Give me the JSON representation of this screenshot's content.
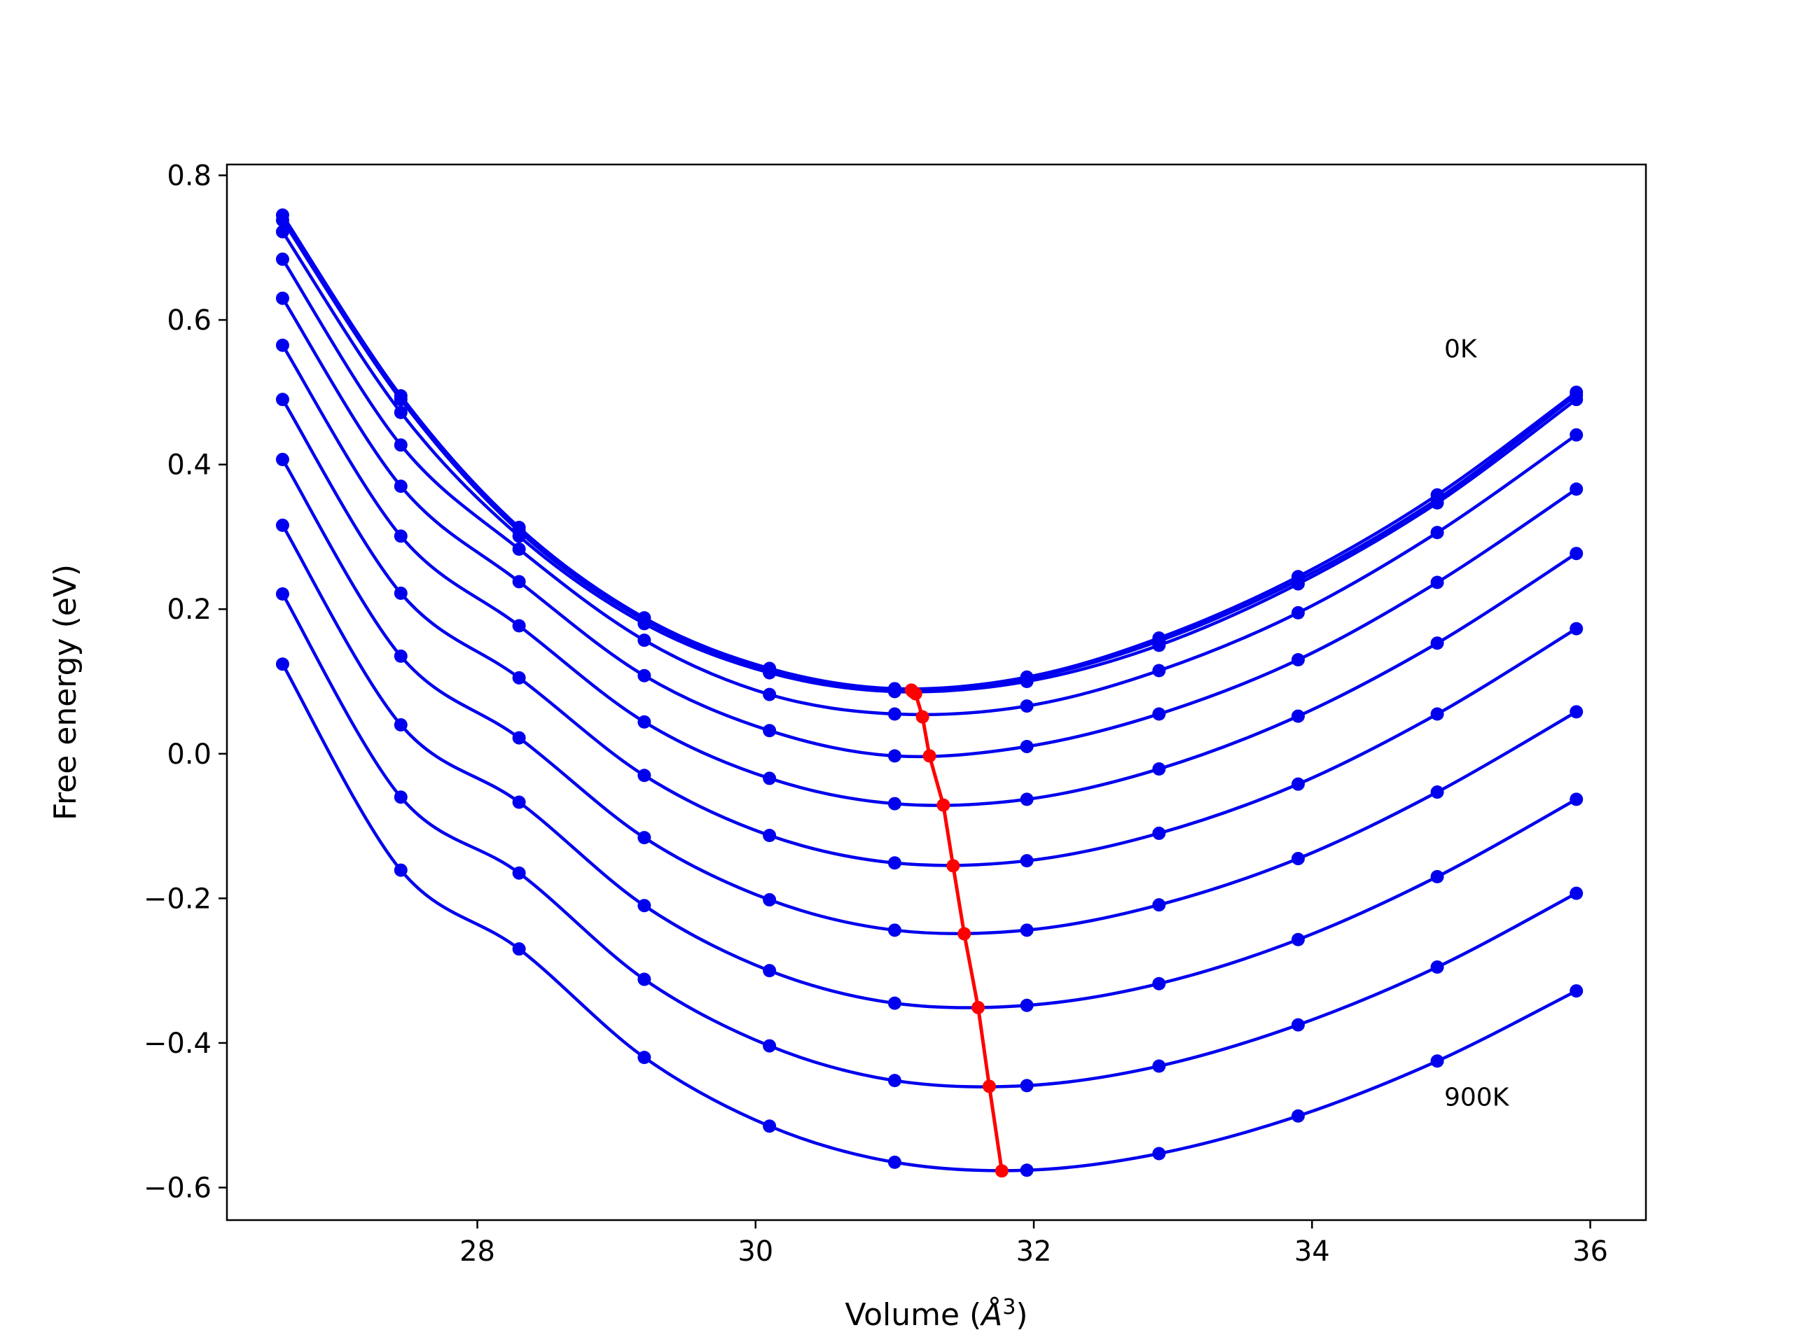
{
  "chart_data": {
    "type": "line",
    "xlabel_prefix": "Volume (",
    "xlabel_unit": "Å",
    "xlabel_exp": "3",
    "xlabel_suffix": ")",
    "ylabel": "Free energy (eV)",
    "xlim": [
      26.2,
      36.4
    ],
    "ylim": [
      -0.645,
      0.815
    ],
    "x_ticks": [
      28,
      30,
      32,
      34,
      36
    ],
    "x_tick_labels": [
      "28",
      "30",
      "32",
      "34",
      "36"
    ],
    "y_ticks": [
      0.8,
      0.6,
      0.4,
      0.2,
      0.0,
      -0.2,
      -0.4,
      -0.6
    ],
    "y_tick_labels": [
      "0.8",
      "0.6",
      "0.4",
      "0.2",
      "0.0",
      "−0.2",
      "−0.4",
      "−0.6"
    ],
    "grid": false,
    "x": [
      26.6,
      27.45,
      28.3,
      29.2,
      30.1,
      31.0,
      31.95,
      32.9,
      33.9,
      34.9,
      35.9
    ],
    "series": [
      {
        "values": [
          0.745,
          0.495,
          0.313,
          0.188,
          0.118,
          0.09,
          0.106,
          0.16,
          0.245,
          0.358,
          0.5
        ],
        "minimum": [
          31.12,
          0.088
        ]
      },
      {
        "values": [
          0.738,
          0.49,
          0.308,
          0.185,
          0.116,
          0.088,
          0.104,
          0.156,
          0.24,
          0.352,
          0.496
        ],
        "minimum": [
          31.13,
          0.086
        ]
      },
      {
        "values": [
          0.722,
          0.472,
          0.301,
          0.18,
          0.112,
          0.086,
          0.1,
          0.15,
          0.235,
          0.347,
          0.49
        ],
        "minimum": [
          31.15,
          0.083
        ]
      },
      {
        "values": [
          0.684,
          0.427,
          0.283,
          0.157,
          0.082,
          0.055,
          0.066,
          0.115,
          0.195,
          0.306,
          0.441
        ],
        "minimum": [
          31.2,
          0.051
        ]
      },
      {
        "values": [
          0.63,
          0.37,
          0.238,
          0.108,
          0.032,
          -0.003,
          0.01,
          0.055,
          0.13,
          0.237,
          0.366
        ],
        "minimum": [
          31.25,
          -0.003
        ]
      },
      {
        "values": [
          0.565,
          0.301,
          0.177,
          0.044,
          -0.034,
          -0.069,
          -0.063,
          -0.021,
          0.052,
          0.153,
          0.277
        ],
        "minimum": [
          31.35,
          -0.071
        ]
      },
      {
        "values": [
          0.49,
          0.222,
          0.105,
          -0.03,
          -0.113,
          -0.151,
          -0.148,
          -0.11,
          -0.042,
          0.055,
          0.173
        ],
        "minimum": [
          31.42,
          -0.155
        ]
      },
      {
        "values": [
          0.407,
          0.135,
          0.022,
          -0.116,
          -0.202,
          -0.244,
          -0.244,
          -0.209,
          -0.145,
          -0.053,
          0.058
        ],
        "minimum": [
          31.5,
          -0.249
        ]
      },
      {
        "values": [
          0.316,
          0.04,
          -0.067,
          -0.21,
          -0.3,
          -0.345,
          -0.348,
          -0.318,
          -0.257,
          -0.17,
          -0.063
        ],
        "minimum": [
          31.6,
          -0.351
        ]
      },
      {
        "values": [
          0.221,
          -0.06,
          -0.165,
          -0.312,
          -0.404,
          -0.452,
          -0.459,
          -0.432,
          -0.375,
          -0.295,
          -0.193
        ],
        "minimum": [
          31.68,
          -0.46
        ]
      },
      {
        "values": [
          0.124,
          -0.161,
          -0.27,
          -0.42,
          -0.515,
          -0.565,
          -0.576,
          -0.553,
          -0.501,
          -0.425,
          -0.328
        ],
        "minimum": [
          31.77,
          -0.577
        ]
      }
    ],
    "series_color": "#0000ee",
    "minimum_line_color": "#ff0000",
    "annotations": [
      {
        "text": "0K",
        "x": 34.95,
        "y": 0.56
      },
      {
        "text": "900K",
        "x": 34.95,
        "y": -0.475
      }
    ]
  }
}
